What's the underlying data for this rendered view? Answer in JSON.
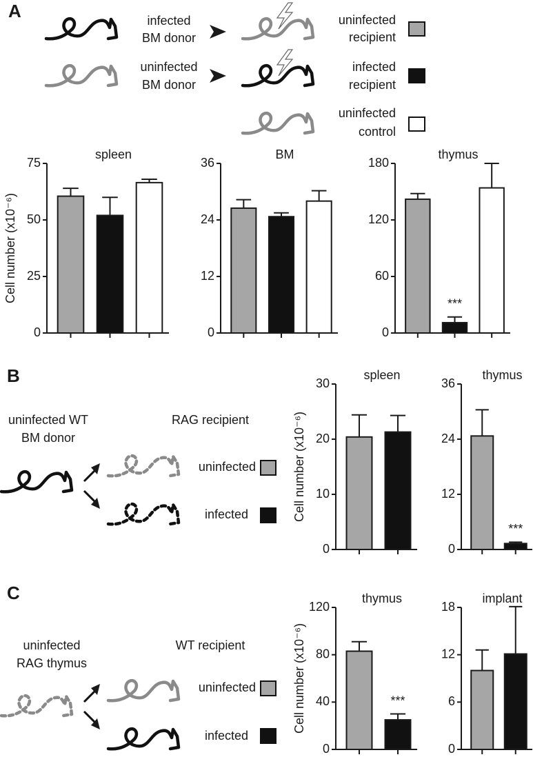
{
  "panel_labels": [
    "A",
    "B",
    "C"
  ],
  "panel_a": {
    "donor_infected": [
      "infected",
      "BM donor"
    ],
    "donor_uninfected": [
      "uninfected",
      "BM donor"
    ],
    "recipient_uninfected": [
      "uninfected",
      "recipient"
    ],
    "recipient_infected": [
      "infected",
      "recipient"
    ],
    "control": [
      "uninfected",
      "control"
    ]
  },
  "panel_b": {
    "donor": [
      "uninfected WT",
      "BM donor"
    ],
    "recipient_header": "RAG recipient",
    "uninfected": "uninfected",
    "infected": "infected"
  },
  "panel_c": {
    "donor": [
      "uninfected",
      "RAG thymus"
    ],
    "recipient_header": "WT recipient",
    "uninfected": "uninfected",
    "infected": "infected"
  },
  "chart_data": [
    {
      "type": "bar",
      "title": "spleen",
      "ylabel": "Cell number (x10⁻⁶)",
      "categories": [
        null,
        null,
        null
      ],
      "values": [
        60.5,
        52,
        66.5
      ],
      "errors": [
        3.5,
        8,
        1.5
      ],
      "colors": [
        "#a6a6a6",
        "#111111",
        "#ffffff"
      ],
      "ylim": [
        0,
        75
      ],
      "yticks": [
        0,
        25,
        50,
        75
      ]
    },
    {
      "type": "bar",
      "title": "BM",
      "categories": [
        null,
        null,
        null
      ],
      "values": [
        26.5,
        24.7,
        28
      ],
      "errors": [
        1.8,
        0.8,
        2.2
      ],
      "colors": [
        "#a6a6a6",
        "#111111",
        "#ffffff"
      ],
      "ylim": [
        0,
        36
      ],
      "yticks": [
        0,
        12,
        24,
        36
      ]
    },
    {
      "type": "bar",
      "title": "thymus",
      "categories": [
        null,
        null,
        null
      ],
      "values": [
        142,
        11,
        154
      ],
      "errors": [
        6,
        6,
        26
      ],
      "colors": [
        "#a6a6a6",
        "#111111",
        "#ffffff"
      ],
      "ylim": [
        0,
        180
      ],
      "yticks": [
        0,
        60,
        120,
        180
      ],
      "annotations": [
        {
          "text": "***",
          "category": 1
        }
      ]
    },
    {
      "type": "bar",
      "title": "spleen",
      "ylabel": "Cell number (x10⁻⁶)",
      "categories": [
        null,
        null
      ],
      "values": [
        20.4,
        21.3
      ],
      "errors": [
        4,
        3
      ],
      "colors": [
        "#a6a6a6",
        "#111111"
      ],
      "ylim": [
        0,
        30
      ],
      "yticks": [
        0,
        10,
        20,
        30
      ]
    },
    {
      "type": "bar",
      "title": "thymus",
      "categories": [
        null,
        null
      ],
      "values": [
        24.7,
        1.3
      ],
      "errors": [
        5.7,
        0.3
      ],
      "colors": [
        "#a6a6a6",
        "#111111"
      ],
      "ylim": [
        0,
        36
      ],
      "yticks": [
        0,
        12,
        24,
        36
      ],
      "annotations": [
        {
          "text": "***",
          "category": 1
        }
      ]
    },
    {
      "type": "bar",
      "title": "thymus",
      "ylabel": "Cell number (x10⁻⁶)",
      "categories": [
        null,
        null
      ],
      "values": [
        83,
        25
      ],
      "errors": [
        8,
        5
      ],
      "colors": [
        "#a6a6a6",
        "#111111"
      ],
      "ylim": [
        0,
        120
      ],
      "yticks": [
        0,
        40,
        80,
        120
      ],
      "annotations": [
        {
          "text": "***",
          "category": 1
        }
      ]
    },
    {
      "type": "bar",
      "title": "implant",
      "categories": [
        null,
        null
      ],
      "values": [
        10,
        12.1
      ],
      "errors": [
        2.6,
        6
      ],
      "colors": [
        "#a6a6a6",
        "#111111"
      ],
      "ylim": [
        0,
        18
      ],
      "yticks": [
        0,
        6,
        12,
        18
      ]
    }
  ]
}
